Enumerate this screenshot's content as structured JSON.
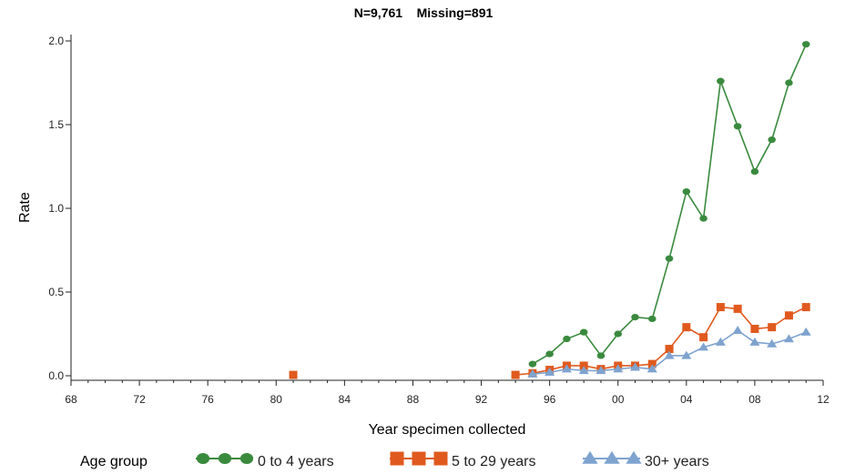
{
  "chart_data": {
    "type": "line",
    "title": "N=9,761    Missing=891",
    "xlabel": "Year specimen collected",
    "ylabel": "Rate",
    "xlim": [
      1968,
      2012
    ],
    "ylim": [
      0,
      2.0
    ],
    "x_ticks": [
      1968,
      1972,
      1976,
      1980,
      1984,
      1988,
      1992,
      1996,
      2000,
      2004,
      2008,
      2012
    ],
    "x_tick_labels": [
      "68",
      "72",
      "76",
      "80",
      "84",
      "88",
      "92",
      "96",
      "00",
      "04",
      "08",
      "12"
    ],
    "y_ticks": [
      0,
      0.5,
      1.0,
      1.5,
      2.0
    ],
    "y_tick_labels": [
      "0.0",
      "0.5",
      "1.0",
      "1.5",
      "2.0"
    ],
    "grid": false,
    "legend": {
      "placement": "bottom",
      "title": "Age group",
      "entries": [
        "0 to 4 years",
        "5 to 29 years",
        "30+ years"
      ]
    },
    "series": [
      {
        "name": "0 to 4 years",
        "color": "#3a8a3e",
        "marker": "circle",
        "points": [
          [
            1995,
            0.07
          ],
          [
            1996,
            0.13
          ],
          [
            1997,
            0.22
          ],
          [
            1998,
            0.26
          ],
          [
            1999,
            0.12
          ],
          [
            2000,
            0.25
          ],
          [
            2001,
            0.35
          ],
          [
            2002,
            0.34
          ],
          [
            2003,
            0.7
          ],
          [
            2004,
            1.1
          ],
          [
            2005,
            0.94
          ],
          [
            2006,
            1.76
          ],
          [
            2007,
            1.49
          ],
          [
            2008,
            1.22
          ],
          [
            2009,
            1.41
          ],
          [
            2010,
            1.75
          ],
          [
            2011,
            1.98
          ]
        ]
      },
      {
        "name": "5 to 29 years",
        "color": "#e05a1f",
        "marker": "square",
        "points": [
          [
            1981,
            0.005
          ],
          [
            1994,
            0.005
          ],
          [
            1995,
            0.015
          ],
          [
            1996,
            0.035
          ],
          [
            1997,
            0.06
          ],
          [
            1998,
            0.06
          ],
          [
            1999,
            0.04
          ],
          [
            2000,
            0.06
          ],
          [
            2001,
            0.06
          ],
          [
            2002,
            0.07
          ],
          [
            2003,
            0.16
          ],
          [
            2004,
            0.29
          ],
          [
            2005,
            0.23
          ],
          [
            2006,
            0.41
          ],
          [
            2007,
            0.4
          ],
          [
            2008,
            0.28
          ],
          [
            2009,
            0.29
          ],
          [
            2010,
            0.36
          ],
          [
            2011,
            0.41
          ]
        ]
      },
      {
        "name": "30+ years",
        "color": "#7fa3cf",
        "marker": "triangle",
        "points": [
          [
            1995,
            0.01
          ],
          [
            1996,
            0.02
          ],
          [
            1997,
            0.04
          ],
          [
            1998,
            0.03
          ],
          [
            1999,
            0.03
          ],
          [
            2000,
            0.04
          ],
          [
            2001,
            0.05
          ],
          [
            2002,
            0.04
          ],
          [
            2003,
            0.12
          ],
          [
            2004,
            0.12
          ],
          [
            2005,
            0.17
          ],
          [
            2006,
            0.2
          ],
          [
            2007,
            0.27
          ],
          [
            2008,
            0.2
          ],
          [
            2009,
            0.19
          ],
          [
            2010,
            0.22
          ],
          [
            2011,
            0.26
          ]
        ]
      }
    ]
  }
}
